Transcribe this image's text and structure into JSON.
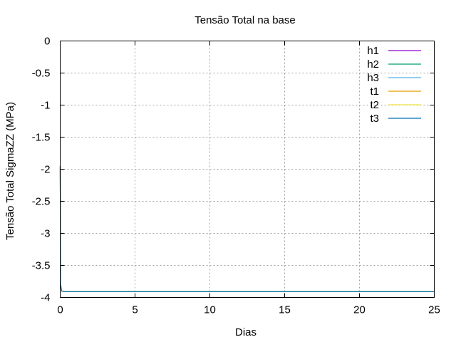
{
  "chart_data": {
    "type": "line",
    "title": "Tensão Total na base",
    "xlabel": "Dias",
    "ylabel": "Tensão Total SigmaZZ (MPa)",
    "xlim": [
      0,
      25
    ],
    "ylim": [
      -4,
      0
    ],
    "x_ticks": [
      "0",
      "5",
      "10",
      "15",
      "20",
      "25"
    ],
    "y_ticks": [
      "0",
      "-0.5",
      "-1",
      "-1.5",
      "-2",
      "-2.5",
      "-3",
      "-3.5",
      "-4"
    ],
    "grid": true,
    "legend_position": "top-right",
    "series": [
      {
        "name": "h1",
        "color": "#9400d3",
        "x": [
          0,
          0.02,
          0.1,
          0.3,
          2.6,
          25
        ],
        "y": [
          -1.95,
          -3.8,
          -3.9,
          -3.91,
          -3.91,
          -3.91
        ]
      },
      {
        "name": "h2",
        "color": "#009e73",
        "x": [
          0,
          0.02,
          0.1,
          0.3,
          2.6,
          25
        ],
        "y": [
          -1.95,
          -3.8,
          -3.9,
          -3.91,
          -3.91,
          -3.91
        ]
      },
      {
        "name": "h3",
        "color": "#56b4e9",
        "x": [
          0,
          0.02,
          0.1,
          0.3,
          2.6,
          25
        ],
        "y": [
          -1.95,
          -3.8,
          -3.9,
          -3.91,
          -3.91,
          -3.91
        ]
      },
      {
        "name": "t1",
        "color": "#e69f00",
        "x": [
          0,
          0.02,
          0.1,
          0.3,
          2.6,
          25
        ],
        "y": [
          -1.95,
          -3.8,
          -3.9,
          -3.91,
          -3.91,
          -3.91
        ]
      },
      {
        "name": "t2",
        "color": "#f0e442",
        "x": [
          0,
          0.02,
          0.1,
          0.3,
          2.6,
          25
        ],
        "y": [
          -1.95,
          -3.8,
          -3.9,
          -3.91,
          -3.91,
          -3.91
        ]
      },
      {
        "name": "t3",
        "color": "#0072b2",
        "x": [
          0,
          0.02,
          0.1,
          0.3,
          2.6,
          25
        ],
        "y": [
          -1.95,
          -3.8,
          -3.9,
          -3.91,
          -3.91,
          -3.91
        ]
      }
    ]
  }
}
